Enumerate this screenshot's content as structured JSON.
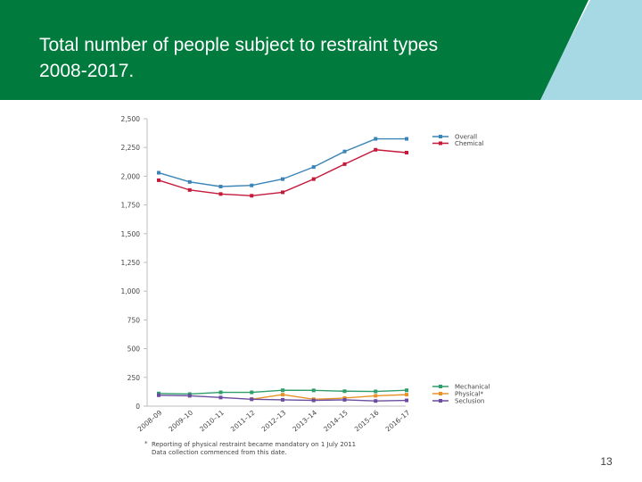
{
  "slide": {
    "title": "Total number of people subject to restraint types\n2008-2017.",
    "page_number": "13"
  },
  "colors": {
    "header_green": "#007a3d",
    "accent_light_blue": "#a6d9e3",
    "title_text": "#ffffff",
    "overall": "#3a84b8",
    "chemical": "#c4193b",
    "mechanical": "#2e9e6a",
    "physical": "#e8922a",
    "seclusion": "#6b4ca0"
  },
  "chart_data": {
    "type": "line",
    "title": "",
    "xlabel": "",
    "ylabel": "",
    "categories": [
      "2008–09",
      "2009–10",
      "2010–11",
      "2011–12",
      "2012–13",
      "2013–14",
      "2014–15",
      "2015–16",
      "2016–17"
    ],
    "ylim": [
      0,
      2500
    ],
    "yticks": [
      0,
      250,
      500,
      750,
      1000,
      1250,
      1500,
      1750,
      2000,
      2250,
      2500
    ],
    "ytick_labels": [
      "0",
      "250",
      "500",
      "750",
      "1,000",
      "1,250",
      "1,500",
      "1,750",
      "2,000",
      "2,250",
      "2,500"
    ],
    "grid": false,
    "series": [
      {
        "name": "Overall",
        "color_key": "overall",
        "legend_group": "top",
        "values": [
          2030,
          1950,
          1910,
          1920,
          1975,
          2080,
          2215,
          2325,
          2325
        ]
      },
      {
        "name": "Chemical",
        "color_key": "chemical",
        "legend_group": "top",
        "values": [
          1965,
          1880,
          1845,
          1830,
          1860,
          1975,
          2105,
          2230,
          2205
        ]
      },
      {
        "name": "Mechanical",
        "color_key": "mechanical",
        "legend_group": "bottom",
        "values": [
          110,
          105,
          120,
          120,
          138,
          137,
          130,
          128,
          138
        ]
      },
      {
        "name": "Physical*",
        "color_key": "physical",
        "legend_group": "bottom",
        "values": [
          null,
          null,
          null,
          60,
          100,
          60,
          70,
          90,
          100
        ]
      },
      {
        "name": "Seclusion",
        "color_key": "seclusion",
        "legend_group": "bottom",
        "values": [
          95,
          90,
          75,
          60,
          55,
          50,
          55,
          45,
          50
        ]
      }
    ],
    "footnote": {
      "marker": "*",
      "line1": "Reporting of physical restraint became mandatory on 1 July 2011",
      "line2": "Data collection commenced from this date."
    }
  }
}
